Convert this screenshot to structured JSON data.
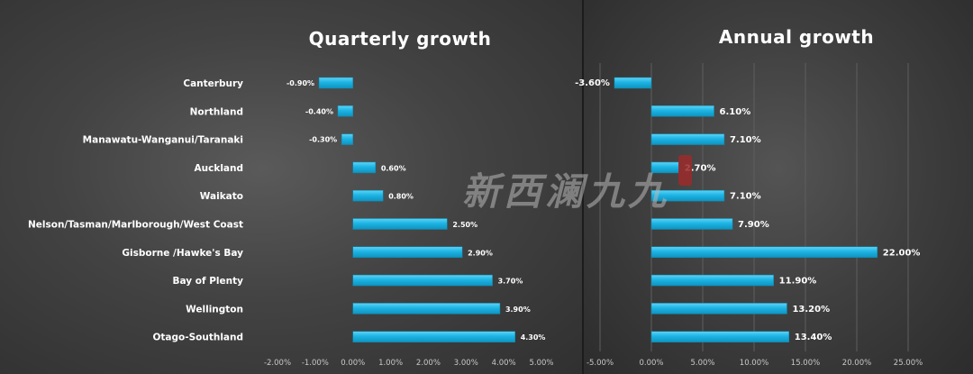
{
  "chart_data": [
    {
      "type": "bar",
      "orientation": "horizontal",
      "title": "Quarterly growth",
      "categories": [
        "Canterbury",
        "Northland",
        "Manawatu-Wanganui/Taranaki",
        "Auckland",
        "Waikato",
        "Nelson/Tasman/Marlborough/West Coast",
        "Gisborne /Hawke's Bay",
        "Bay of Plenty",
        "Wellington",
        "Otago-Southland"
      ],
      "values": [
        -0.9,
        -0.4,
        -0.3,
        0.6,
        0.8,
        2.5,
        2.9,
        3.7,
        3.9,
        4.3
      ],
      "data_labels": [
        "-0.90%",
        "-0.40%",
        "-0.30%",
        "0.60%",
        "0.80%",
        "2.50%",
        "2.90%",
        "3.70%",
        "3.90%",
        "4.30%"
      ],
      "xlim": [
        -2.0,
        5.0
      ],
      "xticks": [
        -2,
        -1,
        0,
        1,
        2,
        3,
        4,
        5
      ],
      "xtick_labels": [
        "-2.00%",
        "-1.00%",
        "0.00%",
        "1.00%",
        "2.00%",
        "3.00%",
        "4.00%",
        "5.00%"
      ],
      "grid": false,
      "bar_color": "#19b5e6"
    },
    {
      "type": "bar",
      "orientation": "horizontal",
      "title": "Annual growth",
      "categories": [
        "Canterbury",
        "Northland",
        "Manawatu-Wanganui/Taranaki",
        "Auckland",
        "Waikato",
        "Nelson/Tasman/Marlborough/West Coast",
        "Gisborne /Hawke's Bay",
        "Bay of Plenty",
        "Wellington",
        "Otago-Southland"
      ],
      "values": [
        -3.6,
        6.1,
        7.1,
        2.7,
        7.1,
        7.9,
        22.0,
        11.9,
        13.2,
        13.4
      ],
      "data_labels": [
        "-3.60%",
        "6.10%",
        "7.10%",
        "2.70%",
        "7.10%",
        "7.90%",
        "22.00%",
        "11.90%",
        "13.20%",
        "13.40%"
      ],
      "xlim": [
        -5.0,
        25.0
      ],
      "xticks": [
        -5,
        0,
        5,
        10,
        15,
        20,
        25
      ],
      "xtick_labels": [
        "-5.00%",
        "0.00%",
        "5.00%",
        "10.00%",
        "15.00%",
        "20.00%",
        "25.00%"
      ],
      "grid": true,
      "bar_color": "#19b5e6"
    }
  ],
  "watermark": "新西澜九九"
}
